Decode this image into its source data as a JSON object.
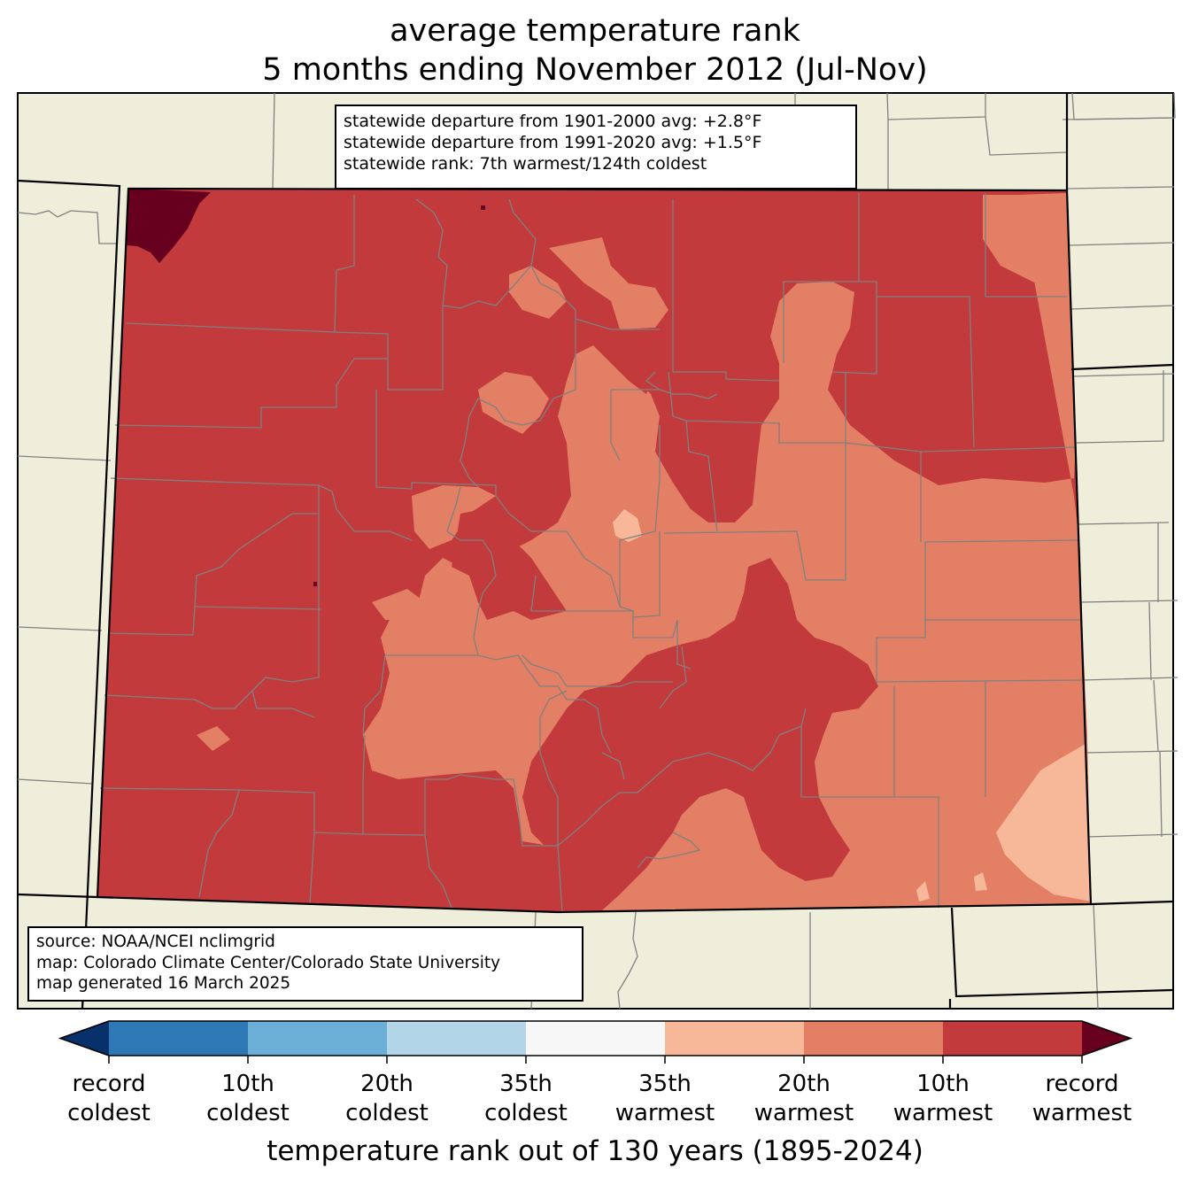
{
  "title": {
    "line1": "average temperature rank",
    "line2": "5 months ending November 2012 (Jul-Nov)"
  },
  "stats": {
    "line1": "statewide departure from 1901-2000 avg: +2.8°F",
    "line2": "statewide departure from 1991-2020 avg: +1.5°F",
    "line3": "statewide rank: 7th warmest/124th coldest"
  },
  "source": {
    "line1": "source: NOAA/NCEI nclimgrid",
    "line2": "map: Colorado Climate Center/Colorado State University",
    "line3": "map generated 16 March 2025"
  },
  "colorbar": {
    "title": "temperature rank out of 130 years (1895-2024)",
    "extend_low_color": "#08306b",
    "extend_high_color": "#67001f",
    "segments": [
      "#2e79b5",
      "#6baed6",
      "#b3d5e8",
      "#f7f7f7",
      "#f7b799",
      "#e37f64",
      "#c23a3b"
    ],
    "ticks": [
      {
        "l1": "record",
        "l2": "coldest"
      },
      {
        "l1": "10th",
        "l2": "coldest"
      },
      {
        "l1": "20th",
        "l2": "coldest"
      },
      {
        "l1": "35th",
        "l2": "coldest"
      },
      {
        "l1": "35th",
        "l2": "warmest"
      },
      {
        "l1": "20th",
        "l2": "warmest"
      },
      {
        "l1": "10th",
        "l2": "warmest"
      },
      {
        "l1": "record",
        "l2": "warmest"
      }
    ]
  },
  "map_colors": {
    "land": "#efeedb",
    "top_10_warmest": "#c23a3b",
    "top_20_warmest": "#e37f64",
    "top_35_warmest": "#f7b799",
    "record_warmest": "#67001f",
    "county_lines": "#808080",
    "state_lines": "#000000"
  }
}
